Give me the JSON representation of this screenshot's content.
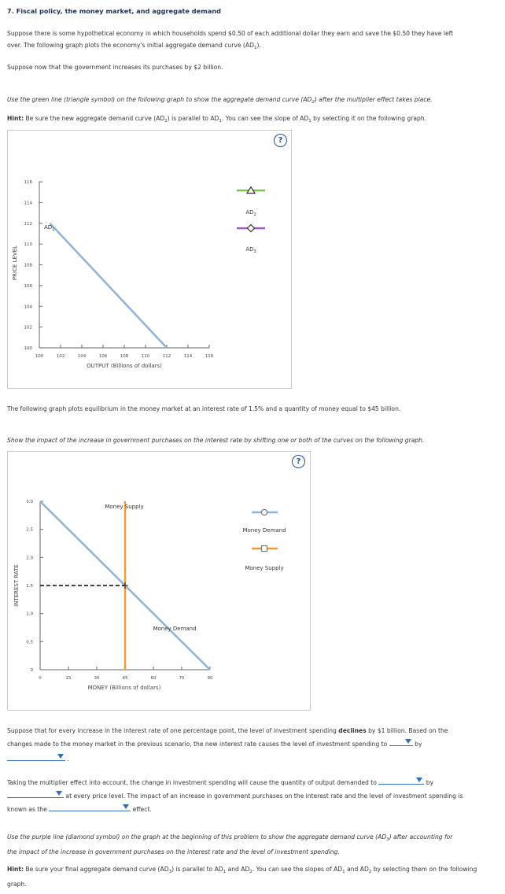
{
  "title": "7. Fiscal policy, the money market, and aggregate demand",
  "intro": {
    "p1a": "Suppose there is some hypothetical economy in which households spend $0.50 of each additional dollar they earn and save the $0.50 they have left",
    "p1b": "over. The following graph plots the economy's initial aggregate demand curve (AD",
    "p1b_sub": "1",
    "p1b_end": ").",
    "p2": "Suppose now that the government increases its purchases by $2 billion."
  },
  "instructions": {
    "i1a": "Use the green line (triangle symbol) on the following graph to show the aggregate demand curve (AD",
    "i1_sub": "2",
    "i1b": ") after the multiplier effect takes place.",
    "hint_label": "Hint:",
    "hint1a": " Be sure the new aggregate demand curve (AD",
    "hint1_sub2": "2",
    "hint1b": ") is parallel to AD",
    "hint1_sub1": "1",
    "hint1c": ". You can see the slope of AD",
    "hint1_sub1b": "1",
    "hint1d": " by selecting it on the following graph."
  },
  "graph1": {
    "help": "?",
    "ylabel": "PRICE LEVEL",
    "xlabel": "OUTPUT (Billions of dollars)",
    "yticks": [
      "116",
      "114",
      "112",
      "110",
      "108",
      "106",
      "104",
      "102",
      "100"
    ],
    "xticks": [
      "100",
      "102",
      "104",
      "106",
      "108",
      "110",
      "112",
      "114",
      "116"
    ],
    "curve_label": "AD",
    "curve_sub": "1",
    "legend": [
      {
        "label": "AD",
        "sub": "2",
        "color": "#78c44a",
        "symbol": "triangle"
      },
      {
        "label": "AD",
        "sub": "3",
        "color": "#9a59c5",
        "symbol": "diamond"
      }
    ]
  },
  "chart_data": [
    {
      "type": "line",
      "ylabel": "PRICE LEVEL",
      "xlabel": "OUTPUT (Billions of dollars)",
      "xlim": [
        100,
        116
      ],
      "ylim": [
        100,
        116
      ],
      "series": [
        {
          "name": "AD1",
          "x": [
            101,
            112
          ],
          "y": [
            112,
            100
          ],
          "color": "#8fb2d9"
        }
      ]
    },
    {
      "type": "line",
      "ylabel": "INTEREST RATE",
      "xlabel": "MONEY (Billions of dollars)",
      "xlim": [
        0,
        90
      ],
      "ylim": [
        0,
        3.0
      ],
      "series": [
        {
          "name": "Money Demand",
          "x": [
            0,
            90
          ],
          "y": [
            3.0,
            0
          ],
          "color": "#8fb2d9"
        },
        {
          "name": "Money Supply",
          "x": [
            45,
            45
          ],
          "y": [
            3.0,
            0
          ],
          "color": "#f39c34"
        }
      ],
      "equilibrium": {
        "x": 45,
        "y": 1.5
      }
    }
  ],
  "middle_text": {
    "p1": "The following graph plots equilibrium in the money market at an interest rate of 1.5% and a quantity of money equal to $45 billion.",
    "p2": "Show the impact of the increase in government purchases on the interest rate by shifting one or both of the curves on the following graph."
  },
  "graph2": {
    "help": "?",
    "ylabel": "INTEREST RATE",
    "xlabel": "MONEY (Billions of dollars)",
    "yticks": [
      "3.0",
      "2.5",
      "2.0",
      "1.5",
      "1.0",
      "0.5",
      "0"
    ],
    "xticks": [
      "0",
      "15",
      "30",
      "45",
      "60",
      "75",
      "90"
    ],
    "supply_label": "Money Supply",
    "demand_label": "Money Demand",
    "legend": [
      {
        "label": "Money Demand",
        "symbol": "circle",
        "color": "#8fb2d9"
      },
      {
        "label": "Money Supply",
        "symbol": "square",
        "color": "#f39c34"
      }
    ]
  },
  "questions": {
    "q1a": "Suppose that for every increase in the interest rate of one percentage point, the level of investment spending ",
    "q1_bold": "declines",
    "q1b": " by $1 billion. Based on the",
    "q1c": "changes made to the money market in the previous scenario, the new interest rate causes the level of investment spending to",
    "q1_by": "by",
    "q2a": "Taking the multiplier effect into account, the change in investment spending will cause the quantity of output demanded to",
    "q2_by": "by",
    "q2b": "at every price level. The impact of an increase in government purchases on the interest rate and the level of investment spending is",
    "q2c": "known as the",
    "q2d": "effect.",
    "q3a": "Use the purple line (diamond symbol) on the graph at the beginning of this problem to show the aggregate demand curve (AD",
    "q3_sub": "3",
    "q3b": ") after accounting for",
    "q3c": "the impact of the increase in government purchases on the interest rate and the level of investment spending.",
    "hint_label": "Hint:",
    "hint2a": " Be sure your final aggregate demand curve (AD",
    "hint2_sub3": "3",
    "hint2b": ") is parallel to AD",
    "hint2_sub1": "1",
    "hint2c": " and AD",
    "hint2_sub2": "2",
    "hint2d": ". You can see the slopes of AD",
    "hint2_sub1b": "1",
    "hint2e": " and AD",
    "hint2_sub2b": "2",
    "hint2f": " by selecting them on the following",
    "hint2g": "graph."
  }
}
